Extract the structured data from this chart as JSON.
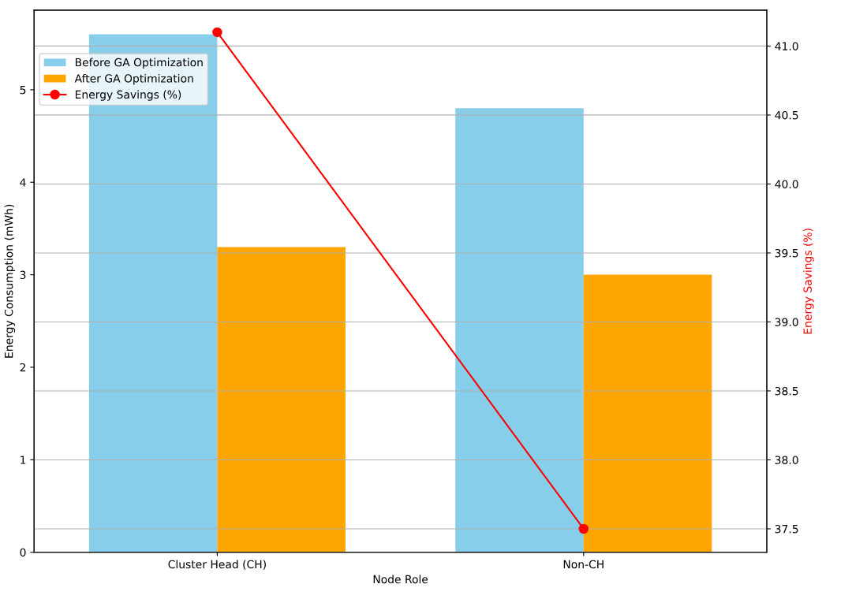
{
  "chart_data": {
    "type": "bar",
    "xlabel": "Node Role",
    "ylabel": "Energy Consumption (mWh)",
    "y2label": "Energy Savings (%)",
    "categories": [
      "Cluster Head (CH)",
      "Non-CH"
    ],
    "series": [
      {
        "name": "Before GA Optimization",
        "color": "#87ceeb",
        "values": [
          5.6,
          4.8
        ]
      },
      {
        "name": "After GA Optimization",
        "color": "#ffa500",
        "values": [
          3.3,
          3.0
        ]
      },
      {
        "name": "Energy Savings (%)",
        "color": "#ff0000",
        "type": "line",
        "axis": "y2",
        "marker": "circle",
        "values": [
          41.1,
          37.5
        ]
      }
    ],
    "ylim": [
      0,
      5.86
    ],
    "yticks": [
      0,
      1,
      2,
      3,
      4,
      5
    ],
    "y2lim": [
      37.33,
      41.26
    ],
    "y2ticks": [
      {
        "value": 37.5,
        "label": "37.5"
      },
      {
        "value": 38.0,
        "label": "38.0"
      },
      {
        "value": 38.5,
        "label": "38.5"
      },
      {
        "value": 39.0,
        "label": "39.0"
      },
      {
        "value": 39.5,
        "label": "39.5"
      },
      {
        "value": 40.0,
        "label": "40.0"
      },
      {
        "value": 40.5,
        "label": "40.5"
      },
      {
        "value": 41.0,
        "label": "41.0"
      }
    ],
    "grid": "y2",
    "legend": "top left"
  }
}
